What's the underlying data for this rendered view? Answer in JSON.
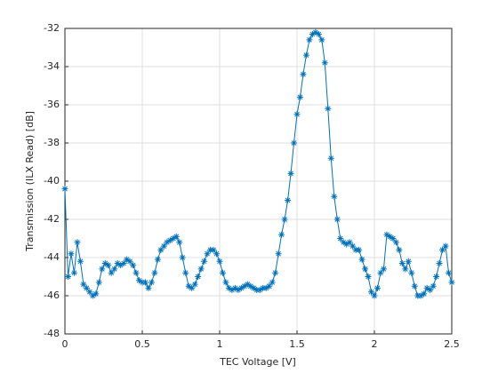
{
  "chart_data": {
    "type": "line",
    "xlabel": "TEC Voltage [V]",
    "ylabel": "Transmission (ILX Read) [dB]",
    "color": "#0072bd",
    "marker": "asterisk",
    "grid": true,
    "xlim": [
      0,
      2.5
    ],
    "ylim": [
      -48,
      -32
    ],
    "xticks": [
      0,
      0.5,
      1,
      1.5,
      2,
      2.5
    ],
    "yticks": [
      -48,
      -46,
      -44,
      -42,
      -40,
      -38,
      -36,
      -34,
      -32
    ],
    "x": [
      0,
      0.02,
      0.04,
      0.06,
      0.08,
      0.1,
      0.12,
      0.14,
      0.16,
      0.18,
      0.2,
      0.22,
      0.24,
      0.26,
      0.28,
      0.3,
      0.32,
      0.34,
      0.36,
      0.38,
      0.4,
      0.42,
      0.44,
      0.46,
      0.48,
      0.5,
      0.52,
      0.54,
      0.56,
      0.58,
      0.6,
      0.62,
      0.64,
      0.66,
      0.68,
      0.7,
      0.72,
      0.74,
      0.76,
      0.78,
      0.8,
      0.82,
      0.84,
      0.86,
      0.88,
      0.9,
      0.92,
      0.94,
      0.96,
      0.98,
      1,
      1.02,
      1.04,
      1.06,
      1.08,
      1.1,
      1.12,
      1.14,
      1.16,
      1.18,
      1.2,
      1.22,
      1.24,
      1.26,
      1.28,
      1.3,
      1.32,
      1.34,
      1.36,
      1.38,
      1.4,
      1.42,
      1.44,
      1.46,
      1.48,
      1.5,
      1.52,
      1.54,
      1.56,
      1.58,
      1.6,
      1.62,
      1.64,
      1.66,
      1.68,
      1.7,
      1.72,
      1.74,
      1.76,
      1.78,
      1.8,
      1.82,
      1.84,
      1.86,
      1.88,
      1.9,
      1.92,
      1.94,
      1.96,
      1.98,
      2,
      2.02,
      2.04,
      2.06,
      2.08,
      2.1,
      2.12,
      2.14,
      2.16,
      2.18,
      2.2,
      2.22,
      2.24,
      2.26,
      2.28,
      2.3,
      2.32,
      2.34,
      2.36,
      2.38,
      2.4,
      2.42,
      2.44,
      2.46,
      2.48,
      2.5
    ],
    "values": [
      -40.4,
      -45,
      -43.8,
      -44.8,
      -43.2,
      -44.2,
      -45.4,
      -45.6,
      -45.8,
      -46,
      -45.9,
      -45.3,
      -44.6,
      -44.3,
      -44.4,
      -44.8,
      -44.6,
      -44.3,
      -44.4,
      -44.3,
      -44.1,
      -44.2,
      -44.4,
      -44.8,
      -45.2,
      -45.3,
      -45.3,
      -45.6,
      -45.3,
      -44.8,
      -44.1,
      -43.6,
      -43.4,
      -43.2,
      -43.1,
      -43,
      -42.9,
      -43.2,
      -44,
      -44.8,
      -45.5,
      -45.6,
      -45.4,
      -45,
      -44.6,
      -44.2,
      -43.8,
      -43.6,
      -43.6,
      -43.8,
      -44.2,
      -44.8,
      -45.3,
      -45.6,
      -45.7,
      -45.6,
      -45.7,
      -45.6,
      -45.5,
      -45.4,
      -45.5,
      -45.6,
      -45.7,
      -45.7,
      -45.6,
      -45.6,
      -45.5,
      -45.3,
      -44.8,
      -43.8,
      -42.8,
      -42,
      -41,
      -39.6,
      -38,
      -36.5,
      -35.6,
      -34.4,
      -33.4,
      -32.6,
      -32.3,
      -32.2,
      -32.3,
      -32.6,
      -33.8,
      -36.2,
      -38.8,
      -40.8,
      -42,
      -43,
      -43.2,
      -43.3,
      -43.2,
      -43.4,
      -43.6,
      -43.6,
      -44.1,
      -44.6,
      -45,
      -45.8,
      -46,
      -45.6,
      -44.8,
      -44.6,
      -42.8,
      -42.9,
      -43,
      -43.2,
      -43.6,
      -44.3,
      -44.6,
      -44.2,
      -44.8,
      -45.5,
      -46,
      -46,
      -45.9,
      -45.6,
      -45.7,
      -45.5,
      -45,
      -44.3,
      -43.6,
      -43.4,
      -44.8,
      -45.3
    ]
  }
}
